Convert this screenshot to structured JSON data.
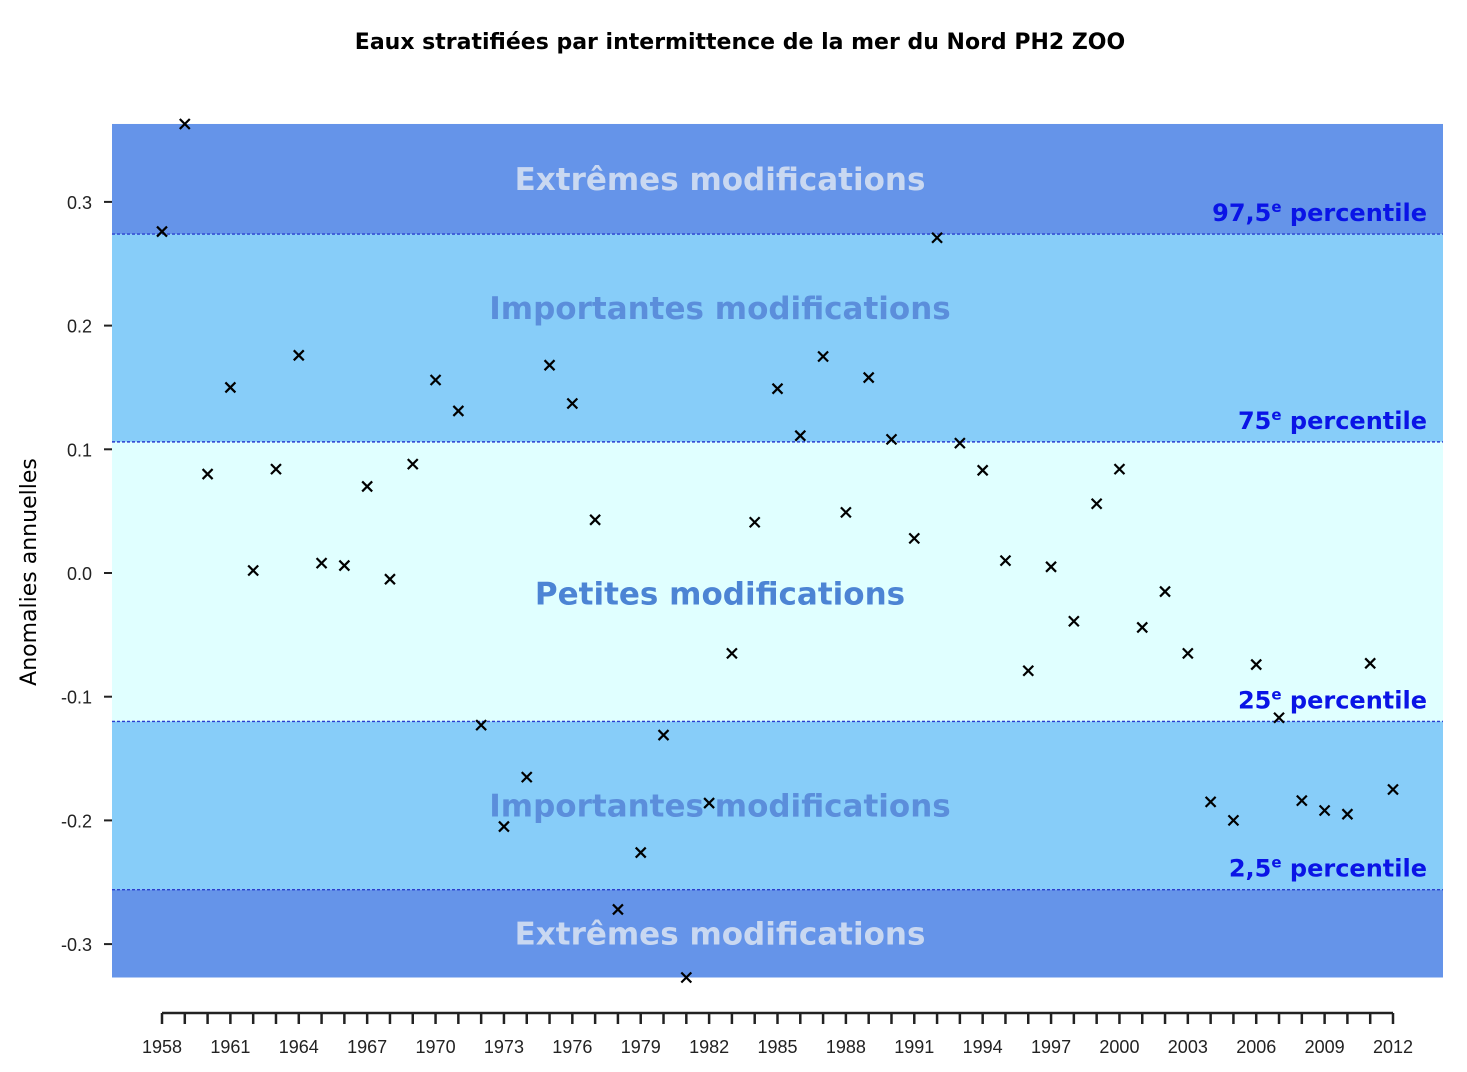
{
  "chart_data": {
    "type": "scatter",
    "title": "Eaux stratifiées par intermittence de la mer du Nord PH2 ZOO",
    "xlabel": "",
    "ylabel": "Anomalies annuelles",
    "xlim": [
      1958,
      2012
    ],
    "ylim": [
      -0.327,
      0.363
    ],
    "x_ticks": [
      1958,
      1961,
      1964,
      1967,
      1970,
      1973,
      1976,
      1979,
      1982,
      1985,
      1988,
      1991,
      1994,
      1997,
      2000,
      2003,
      2006,
      2009,
      2012
    ],
    "y_ticks": [
      0.3,
      0.2,
      0.1,
      0.0,
      -0.1,
      -0.2,
      -0.3
    ],
    "y_tick_labels": [
      "0.3",
      "0.2",
      "0.1",
      "0.0",
      "-0.1",
      "-0.2",
      "-0.3"
    ],
    "marker": "x",
    "x": [
      1958,
      1959,
      1960,
      1961,
      1962,
      1963,
      1964,
      1965,
      1966,
      1967,
      1968,
      1969,
      1970,
      1971,
      1972,
      1973,
      1974,
      1975,
      1976,
      1977,
      1978,
      1979,
      1980,
      1981,
      1982,
      1983,
      1984,
      1985,
      1986,
      1987,
      1988,
      1989,
      1990,
      1991,
      1992,
      1993,
      1994,
      1995,
      1996,
      1997,
      1998,
      1999,
      2000,
      2001,
      2002,
      2003,
      2004,
      2005,
      2006,
      2007,
      2008,
      2009,
      2010,
      2011,
      2012
    ],
    "y": [
      0.276,
      0.363,
      0.08,
      0.15,
      0.002,
      0.084,
      0.176,
      0.008,
      0.006,
      0.07,
      -0.005,
      0.088,
      0.156,
      0.131,
      -0.123,
      -0.205,
      -0.165,
      0.168,
      0.137,
      0.043,
      -0.272,
      -0.226,
      -0.131,
      -0.327,
      -0.186,
      -0.065,
      0.041,
      0.149,
      0.111,
      0.175,
      0.049,
      0.158,
      0.108,
      0.028,
      0.271,
      0.105,
      0.083,
      0.01,
      -0.079,
      0.005,
      -0.039,
      0.056,
      0.084,
      -0.044,
      -0.015,
      -0.065,
      -0.185,
      -0.2,
      -0.074,
      -0.117,
      -0.184,
      -0.192,
      -0.195,
      -0.073,
      -0.175
    ],
    "thresholds": [
      {
        "value": 0.274,
        "label": "97,5",
        "sup": "e",
        "suffix": " percentile"
      },
      {
        "value": 0.106,
        "label": "75",
        "sup": "e",
        "suffix": " percentile"
      },
      {
        "value": -0.12,
        "label": "25",
        "sup": "e",
        "suffix": " percentile"
      },
      {
        "value": -0.256,
        "label": "2,5",
        "sup": "e",
        "suffix": " percentile"
      }
    ],
    "bands": [
      {
        "from": 0.274,
        "to": 0.363,
        "label": "Extrêmes modifications",
        "color": "#6594e9",
        "kind": "ext"
      },
      {
        "from": 0.106,
        "to": 0.274,
        "label": "Importantes modifications",
        "color": "#87cdf9",
        "kind": "imp"
      },
      {
        "from": -0.12,
        "to": 0.106,
        "label": "Petites modifications",
        "color": "#e0ffff",
        "kind": "pet"
      },
      {
        "from": -0.256,
        "to": -0.12,
        "label": "Importantes modifications",
        "color": "#87cdf9",
        "kind": "imp"
      },
      {
        "from": -0.327,
        "to": -0.256,
        "label": "Extrêmes modifications",
        "color": "#6594e9",
        "kind": "ext"
      }
    ]
  }
}
